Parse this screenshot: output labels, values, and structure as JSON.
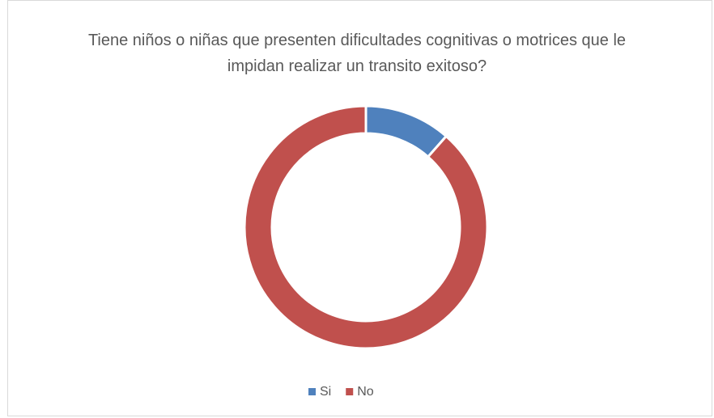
{
  "chart_data": {
    "type": "donut",
    "title": "Tiene niños o niñas que presenten dificultades cognitivas o motrices que le impidan realizar un transito exitoso?",
    "categories": [
      "Si",
      "No"
    ],
    "values": [
      11.5,
      88.5
    ],
    "colors": [
      "#4f81bd",
      "#c0504d"
    ],
    "legend": "bottom"
  }
}
